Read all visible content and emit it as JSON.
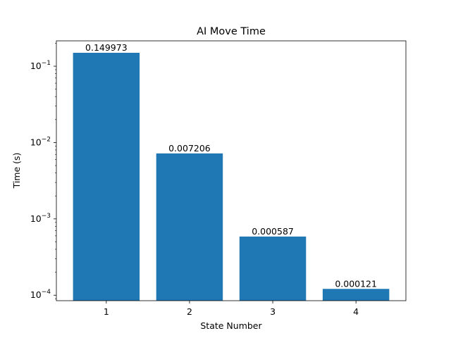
{
  "chart_data": {
    "type": "bar",
    "title": "AI Move Time",
    "xlabel": "State Number",
    "ylabel": "Time (s)",
    "yscale": "log",
    "ylim": [
      8.48e-05,
      0.215
    ],
    "categories": [
      "1",
      "2",
      "3",
      "4"
    ],
    "values": [
      0.149973,
      0.007206,
      0.000587,
      0.000121
    ],
    "data_labels": [
      "0.149973",
      "0.007206",
      "0.000587",
      "0.000121"
    ],
    "y_ticks": [
      {
        "value": 0.1,
        "base": "10",
        "exp": "−1"
      },
      {
        "value": 0.01,
        "base": "10",
        "exp": "−2"
      },
      {
        "value": 0.001,
        "base": "10",
        "exp": "−3"
      },
      {
        "value": 0.0001,
        "base": "10",
        "exp": "−4"
      }
    ],
    "grid": false,
    "bar_color": "#1f77b4"
  }
}
